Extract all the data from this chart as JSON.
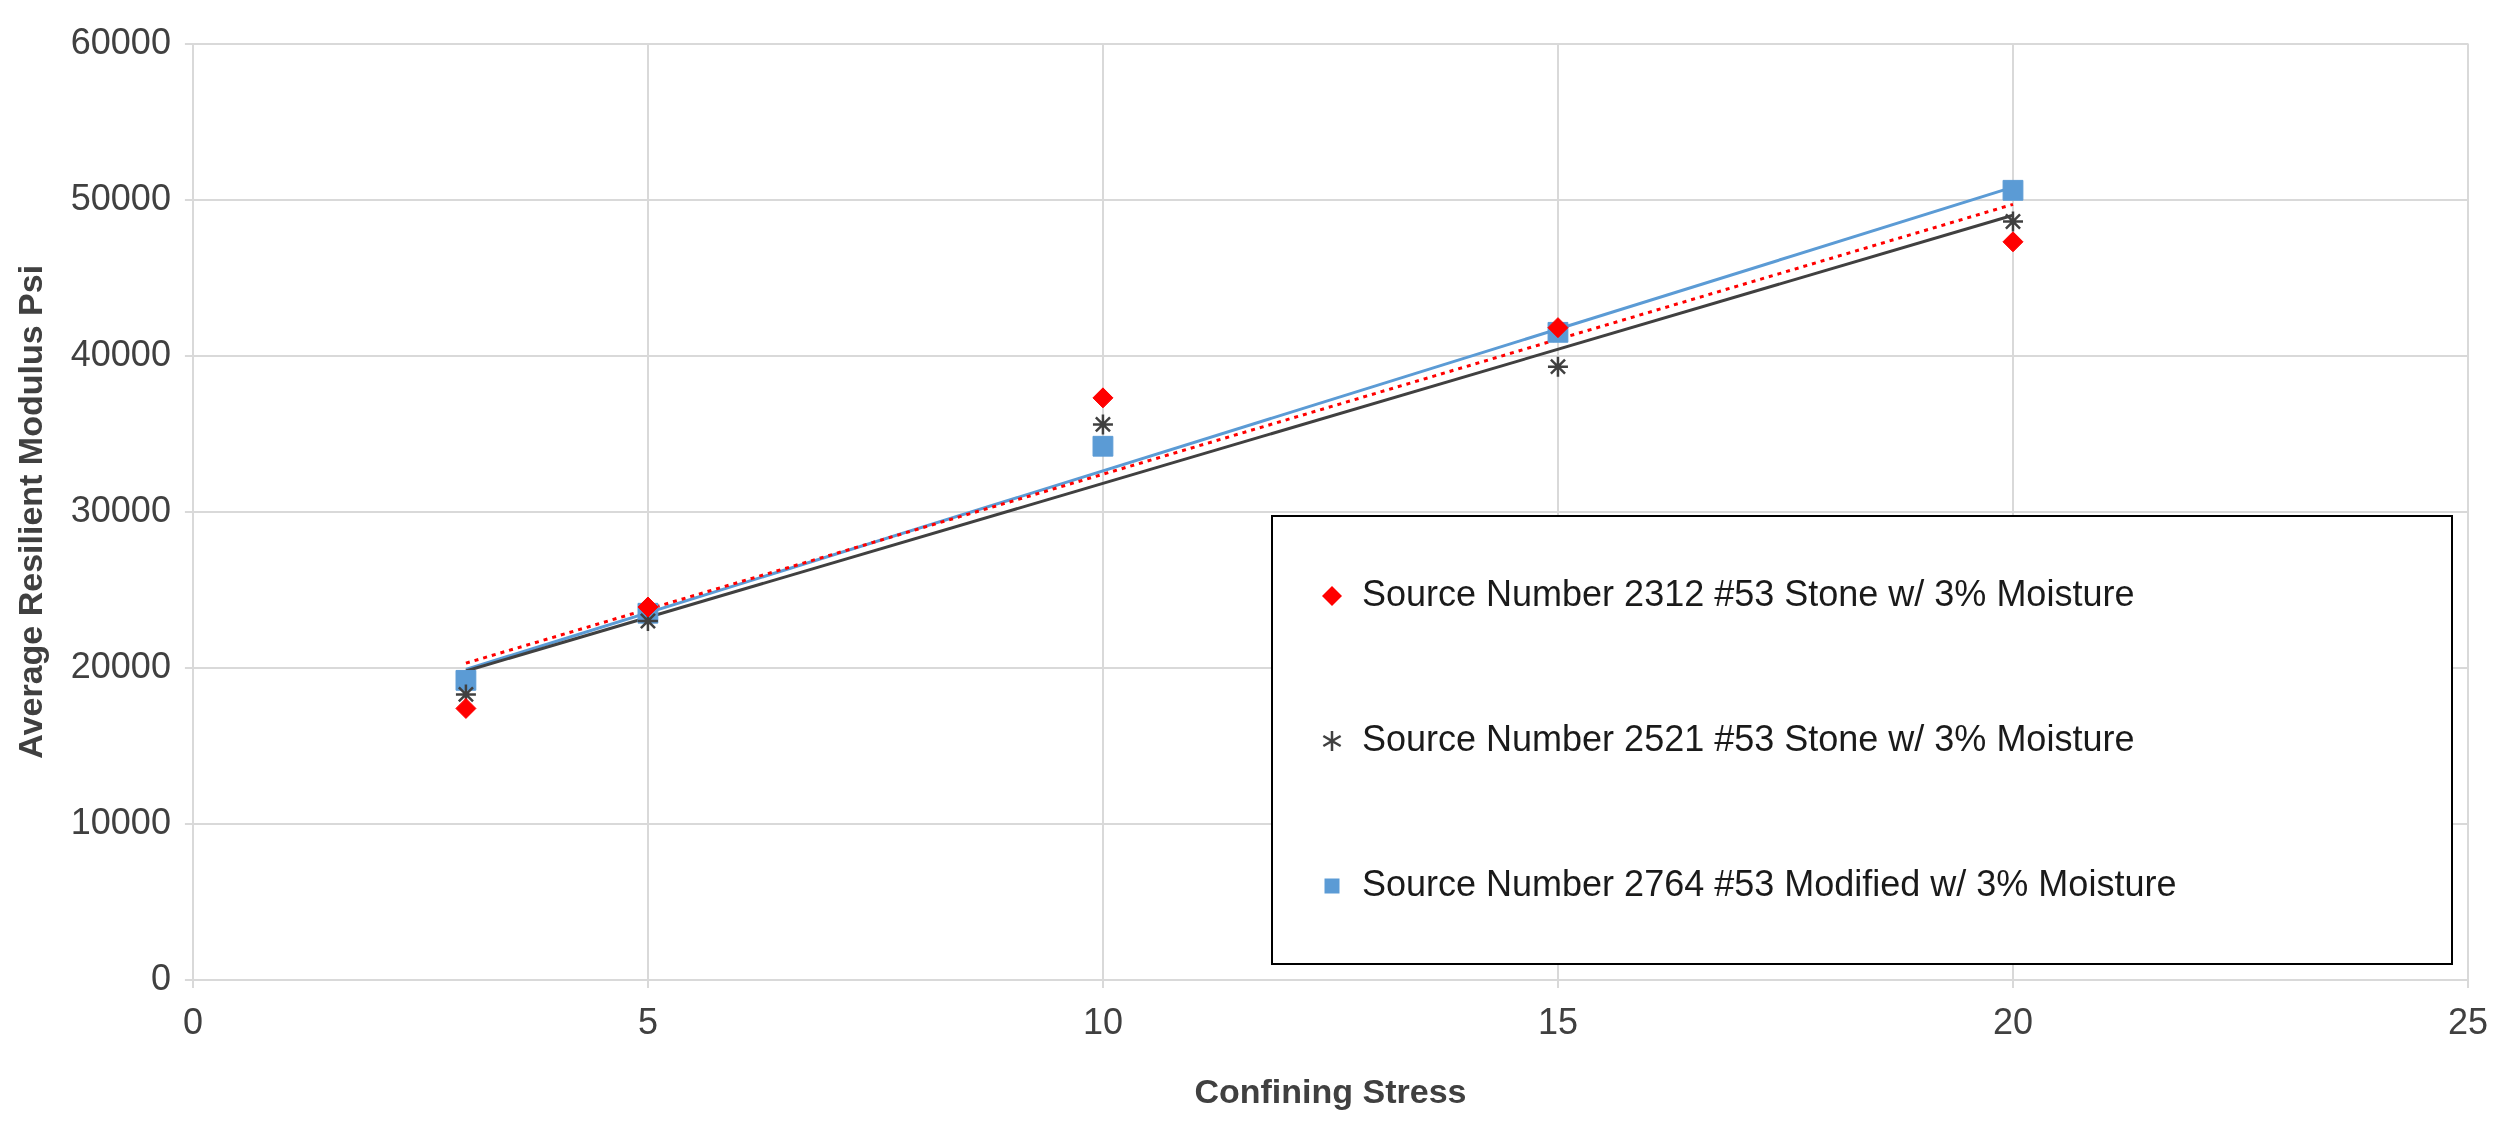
{
  "chart_data": {
    "type": "scatter",
    "xlabel": "Confining Stress",
    "ylabel": "Average Resilient Modulus Psi",
    "xlim": [
      0,
      25
    ],
    "xticks": [
      0,
      5,
      10,
      15,
      20,
      25
    ],
    "ylim": [
      0,
      60000
    ],
    "yticks": [
      0,
      10000,
      20000,
      30000,
      40000,
      50000,
      60000
    ],
    "grid": true,
    "legend": "bottom right",
    "series": [
      {
        "name": "Source Number 2312 #53 Stone w/ 3% Moisture",
        "color": "#ff0000",
        "marker": "diamond",
        "x": [
          3,
          5,
          10,
          15,
          20
        ],
        "values": [
          17400,
          23900,
          37300,
          41800,
          47300
        ]
      },
      {
        "name": "Source Number 2521 #53 Stone w/ 3% Moisture",
        "color": "#404040",
        "marker": "cross",
        "x": [
          3,
          5,
          10,
          15,
          20
        ],
        "values": [
          18300,
          23000,
          35600,
          39300,
          48600
        ]
      },
      {
        "name": "Source Number 2764 #53 Modified w/ 3% Moisture",
        "color": "#5b9bd5",
        "marker": "square",
        "x": [
          3,
          5,
          10,
          15,
          20
        ],
        "values": [
          19200,
          23500,
          34200,
          41500,
          50600
        ]
      },
      {
        "type": "line",
        "color": "#ff0000",
        "line_style": "dotted",
        "marker": "none",
        "x": [
          3,
          20
        ],
        "values": [
          20300,
          49700
        ]
      },
      {
        "type": "line",
        "color": "#404040",
        "line_style": "solid",
        "marker": "none",
        "x": [
          3,
          20
        ],
        "values": [
          19800,
          49000
        ]
      },
      {
        "type": "line",
        "color": "#5b9bd5",
        "line_style": "solid",
        "marker": "none",
        "x": [
          3,
          20
        ],
        "values": [
          19900,
          50800
        ]
      }
    ]
  }
}
